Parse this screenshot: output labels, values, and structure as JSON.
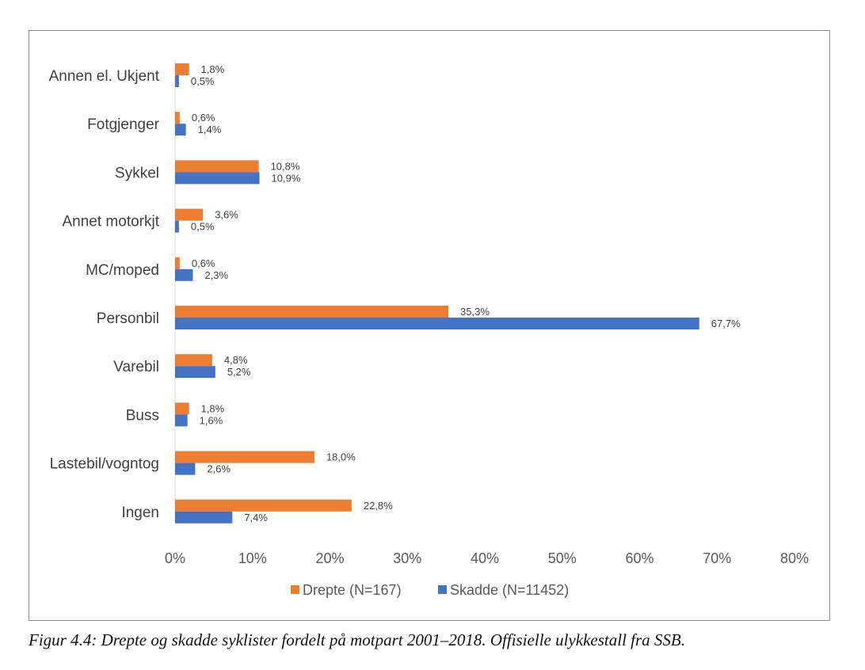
{
  "chart_data": {
    "type": "bar",
    "orientation": "horizontal",
    "categories": [
      "Annen el. Ukjent",
      "Fotgjenger",
      "Sykkel",
      "Annet motorkjt",
      "MC/moped",
      "Personbil",
      "Varebil",
      "Buss",
      "Lastebil/vogntog",
      "Ingen"
    ],
    "series": [
      {
        "name": "Drepte (N=167)",
        "color": "#ED7D31",
        "values": [
          1.8,
          0.6,
          10.8,
          3.6,
          0.6,
          35.3,
          4.8,
          1.8,
          18.0,
          22.8
        ],
        "labels": [
          "1,8%",
          "0,6%",
          "10,8%",
          "3,6%",
          "0,6%",
          "35,3%",
          "4,8%",
          "1,8%",
          "18,0%",
          "22,8%"
        ]
      },
      {
        "name": "Skadde (N=11452)",
        "color": "#4472C4",
        "values": [
          0.5,
          1.4,
          10.9,
          0.5,
          2.3,
          67.7,
          5.2,
          1.6,
          2.6,
          7.4
        ],
        "labels": [
          "0,5%",
          "1,4%",
          "10,9%",
          "0,5%",
          "2,3%",
          "67,7%",
          "5,2%",
          "1,6%",
          "2,6%",
          "7,4%"
        ]
      }
    ],
    "xlim": [
      0,
      80
    ],
    "xticks": [
      0,
      10,
      20,
      30,
      40,
      50,
      60,
      70,
      80
    ],
    "xtick_labels": [
      "0%",
      "10%",
      "20%",
      "30%",
      "40%",
      "50%",
      "60%",
      "70%",
      "80%"
    ],
    "grid": false,
    "legend_position": "bottom"
  },
  "caption": "Figur 4.4: Drepte og skadde syklister fordelt på motpart 2001–2018. Offisielle ulykkestall fra SSB."
}
